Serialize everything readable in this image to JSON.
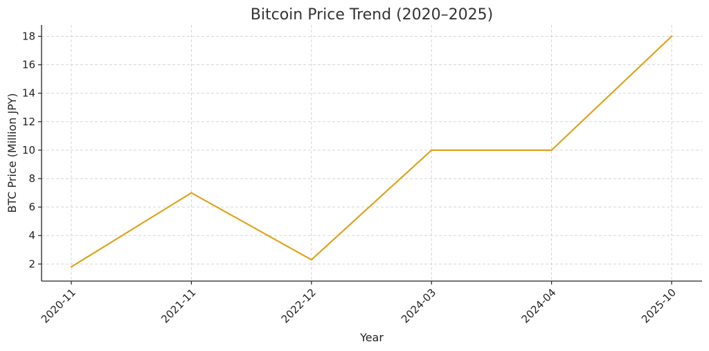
{
  "chart_data": {
    "type": "line",
    "title": "Bitcoin Price Trend (2020–2025)",
    "xlabel": "Year",
    "ylabel": "BTC Price (Million JPY)",
    "categories": [
      "2020-11",
      "2021-11",
      "2022-12",
      "2024-03",
      "2024-04",
      "2025-10"
    ],
    "series": [
      {
        "values": [
          1.8,
          7.0,
          2.3,
          10.0,
          10.0,
          18.0
        ],
        "color": "#E0A21B"
      }
    ],
    "yticks": [
      2,
      4,
      6,
      8,
      10,
      12,
      14,
      16,
      18
    ],
    "ylim": [
      0.8,
      18.8
    ],
    "grid": true,
    "legend": "none"
  }
}
